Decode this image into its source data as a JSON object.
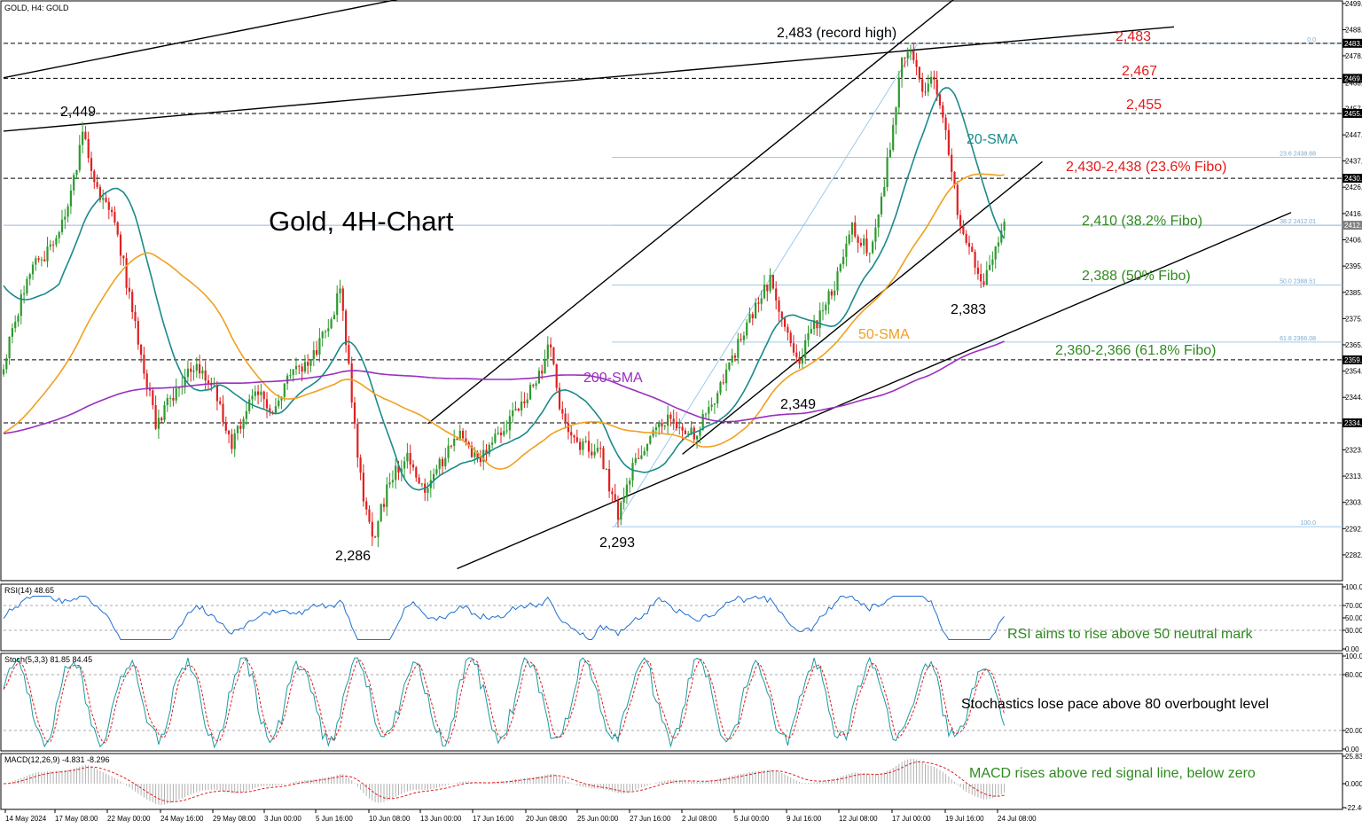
{
  "header": "GOLD, H4:  GOLD",
  "chart_data": {
    "type": "candlestick",
    "title": "Gold, 4H-Chart",
    "ylim": [
      2273.0,
      2499.16
    ],
    "y_ticks": [
      "2499.16",
      "2488.90",
      "2478.62",
      "2468.02",
      "2457.83",
      "2447.54",
      "2437.28",
      "2426.97",
      "2416.60",
      "2406.28",
      "2395.96",
      "2385.64",
      "2375.32",
      "2365.00",
      "2354.68",
      "2344.36",
      "2334.04",
      "2323.72",
      "2313.40",
      "2303.08",
      "2292.76",
      "2282.44"
    ],
    "x_ticks": [
      "14 May 2024",
      "17 May 08:00",
      "22 May 00:00",
      "24 May 16:00",
      "29 May 08:00",
      "3 Jun 00:00",
      "5 Jun 16:00",
      "10 Jun 08:00",
      "13 Jun 00:00",
      "17 Jun 16:00",
      "20 Jun 08:00",
      "25 Jun 00:00",
      "27 Jun 16:00",
      "2 Jul 08:00",
      "5 Jul 00:00",
      "9 Jul 16:00",
      "12 Jul 08:00",
      "17 Jul 00:00",
      "19 Jul 16:00",
      "24 Jul 08:00"
    ],
    "price_tags": [
      {
        "label": "2483.54",
        "value": 2483.54,
        "color": "#000000"
      },
      {
        "label": "2469.76",
        "value": 2469.76,
        "color": "#000000"
      },
      {
        "label": "2455.97",
        "value": 2455.97,
        "color": "#000000"
      },
      {
        "label": "2430.47",
        "value": 2430.47,
        "color": "#000000"
      },
      {
        "label": "2412.01",
        "value": 2412.01,
        "color": "#808080"
      },
      {
        "label": "2359.11",
        "value": 2359.11,
        "color": "#000000"
      },
      {
        "label": "2334.34",
        "value": 2334.34,
        "color": "#000000"
      }
    ],
    "fib_levels": [
      {
        "label": "0.0",
        "value": 2483.54
      },
      {
        "label": "23.6 2438.68",
        "value": 2438.68
      },
      {
        "label": "38.2 2412.01",
        "value": 2412.01
      },
      {
        "label": "50.0 2388.51",
        "value": 2388.51
      },
      {
        "label": "61.8 2366.08",
        "value": 2366.08
      },
      {
        "label": "100.0",
        "value": 2293.5
      }
    ],
    "annotations": [
      {
        "text": "2,449",
        "color": "#000000"
      },
      {
        "text": "2,483 (record high)",
        "color": "#000000"
      },
      {
        "text": "2,483",
        "color": "#e31b1b"
      },
      {
        "text": "2,467",
        "color": "#e31b1b"
      },
      {
        "text": "2,455",
        "color": "#e31b1b"
      },
      {
        "text": "20-SMA",
        "color": "#1a8a8a"
      },
      {
        "text": "2,430-2,438 (23.6% Fibo)",
        "color": "#e31b1b"
      },
      {
        "text": "2,410 (38.2% Fibo)",
        "color": "#2e8b1e"
      },
      {
        "text": "2,388 (50% Fibo)",
        "color": "#2e8b1e"
      },
      {
        "text": "2,383",
        "color": "#000000"
      },
      {
        "text": "50-SMA",
        "color": "#f0a020"
      },
      {
        "text": "2,360-2,366 (61.8% Fibo)",
        "color": "#2e8b1e"
      },
      {
        "text": "200-SMA",
        "color": "#9a2fbf"
      },
      {
        "text": "2,349",
        "color": "#000000"
      },
      {
        "text": "2,286",
        "color": "#000000"
      },
      {
        "text": "2,293",
        "color": "#000000"
      }
    ],
    "anchors": [
      {
        "t": 0,
        "p": 2358
      },
      {
        "t": 8,
        "p": 2392
      },
      {
        "t": 18,
        "p": 2406
      },
      {
        "t": 24,
        "p": 2430
      },
      {
        "t": 27,
        "p": 2449
      },
      {
        "t": 32,
        "p": 2425
      },
      {
        "t": 38,
        "p": 2415
      },
      {
        "t": 44,
        "p": 2378
      },
      {
        "t": 52,
        "p": 2334
      },
      {
        "t": 60,
        "p": 2350
      },
      {
        "t": 66,
        "p": 2356
      },
      {
        "t": 72,
        "p": 2347
      },
      {
        "t": 78,
        "p": 2326
      },
      {
        "t": 86,
        "p": 2349
      },
      {
        "t": 92,
        "p": 2337
      },
      {
        "t": 98,
        "p": 2353
      },
      {
        "t": 104,
        "p": 2356
      },
      {
        "t": 112,
        "p": 2374
      },
      {
        "t": 115,
        "p": 2388
      },
      {
        "t": 118,
        "p": 2356
      },
      {
        "t": 122,
        "p": 2312
      },
      {
        "t": 126,
        "p": 2288
      },
      {
        "t": 132,
        "p": 2312
      },
      {
        "t": 138,
        "p": 2322
      },
      {
        "t": 144,
        "p": 2308
      },
      {
        "t": 150,
        "p": 2320
      },
      {
        "t": 156,
        "p": 2330
      },
      {
        "t": 162,
        "p": 2320
      },
      {
        "t": 168,
        "p": 2328
      },
      {
        "t": 176,
        "p": 2340
      },
      {
        "t": 182,
        "p": 2350
      },
      {
        "t": 187,
        "p": 2366
      },
      {
        "t": 190,
        "p": 2340
      },
      {
        "t": 196,
        "p": 2327
      },
      {
        "t": 204,
        "p": 2322
      },
      {
        "t": 210,
        "p": 2297
      },
      {
        "t": 214,
        "p": 2314
      },
      {
        "t": 220,
        "p": 2328
      },
      {
        "t": 228,
        "p": 2336
      },
      {
        "t": 236,
        "p": 2330
      },
      {
        "t": 244,
        "p": 2346
      },
      {
        "t": 250,
        "p": 2362
      },
      {
        "t": 256,
        "p": 2378
      },
      {
        "t": 262,
        "p": 2391
      },
      {
        "t": 268,
        "p": 2368
      },
      {
        "t": 272,
        "p": 2360
      },
      {
        "t": 278,
        "p": 2374
      },
      {
        "t": 284,
        "p": 2388
      },
      {
        "t": 290,
        "p": 2412
      },
      {
        "t": 296,
        "p": 2400
      },
      {
        "t": 302,
        "p": 2436
      },
      {
        "t": 307,
        "p": 2475
      },
      {
        "t": 310,
        "p": 2482
      },
      {
        "t": 314,
        "p": 2462
      },
      {
        "t": 318,
        "p": 2470
      },
      {
        "t": 322,
        "p": 2448
      },
      {
        "t": 326,
        "p": 2418
      },
      {
        "t": 330,
        "p": 2404
      },
      {
        "t": 334,
        "p": 2388
      },
      {
        "t": 338,
        "p": 2398
      },
      {
        "t": 342,
        "p": 2412
      }
    ],
    "rsi": {
      "label": "RSI(14) 48.65",
      "ylim": [
        0,
        100
      ],
      "ticks": [
        "100.00",
        "70.00",
        "50.00",
        "30.00",
        "0.00"
      ],
      "levels": [
        70,
        30
      ]
    },
    "stoch": {
      "label": "Stoch(5,3,3) 81.85 84.45",
      "ylim": [
        0,
        100
      ],
      "ticks": [
        "100.00",
        "80.00",
        "20.00",
        "0.00"
      ],
      "levels": [
        80,
        20
      ]
    },
    "macd": {
      "label": "MACD(12,26,9) -4.831 -8.296",
      "ylim": [
        -22.462,
        25.834
      ],
      "ticks": [
        "25.834",
        "0.000",
        "-22.462"
      ]
    }
  },
  "notes": {
    "rsi": "RSI aims to rise above 50 neutral mark",
    "stoch": "Stochastics lose pace above 80 overbought level",
    "macd": "MACD rises above red signal line, below zero"
  },
  "colors": {
    "bull": "#2e9a2e",
    "bear": "#e02020",
    "sma20": "#1a8a8a",
    "sma50": "#f0a020",
    "sma200": "#9a2fbf",
    "fib": "#9ccaeb",
    "osc": "#1f6fd0",
    "signal": "#e02020"
  }
}
